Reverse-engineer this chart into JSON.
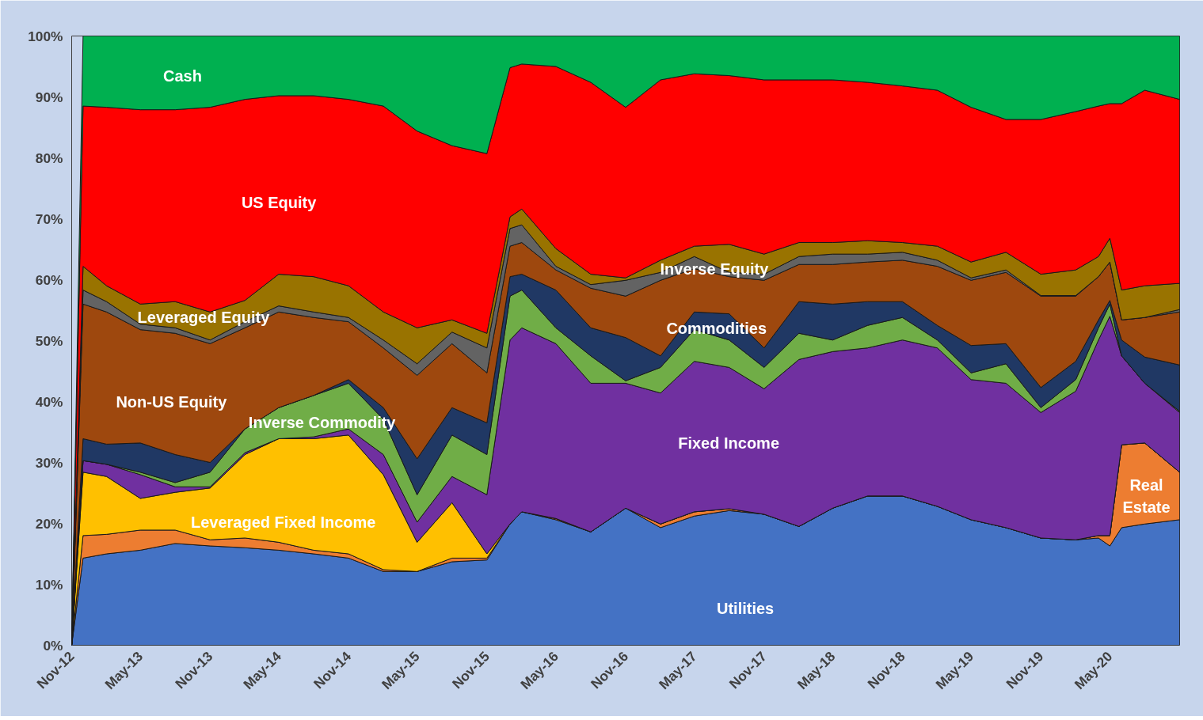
{
  "chart_data": {
    "type": "area",
    "stacked": true,
    "x": [
      "2012-11",
      "2012-12",
      "2013-02",
      "2013-05",
      "2013-08",
      "2013-11",
      "2014-02",
      "2014-05",
      "2014-08",
      "2014-11",
      "2015-02",
      "2015-05",
      "2015-08",
      "2015-11",
      "2016-01",
      "2016-02",
      "2016-05",
      "2016-08",
      "2016-11",
      "2017-02",
      "2017-05",
      "2017-08",
      "2017-11",
      "2018-02",
      "2018-05",
      "2018-08",
      "2018-11",
      "2019-02",
      "2019-05",
      "2019-08",
      "2019-11",
      "2020-02",
      "2020-04",
      "2020-05",
      "2020-06",
      "2020-08",
      "2020-11"
    ],
    "series": [
      {
        "name": "Utilities",
        "color": "#4472c4",
        "values": [
          0,
          14.3,
          15,
          15.6,
          16.7,
          16.3,
          16,
          15.6,
          15,
          14.3,
          12.1,
          12.1,
          13.7,
          14,
          19.9,
          21.9,
          20.6,
          18.6,
          22.5,
          19.3,
          21.2,
          22.1,
          21.5,
          19.5,
          22.5,
          24.5,
          24.5,
          22.8,
          20.6,
          19.3,
          17.6,
          17.3,
          17.6,
          16.3,
          19.3,
          19.9,
          20.6
        ]
      },
      {
        "name": "Real Estate",
        "color": "#ed7d31",
        "values": [
          0,
          3.7,
          3.2,
          3.3,
          2.2,
          1,
          1.6,
          1.3,
          0.6,
          0.7,
          0.3,
          0,
          0.6,
          0.3,
          0,
          0,
          0.2,
          0,
          0,
          0.6,
          0.7,
          0.3,
          0,
          0,
          0,
          0,
          0,
          0,
          0,
          0,
          0,
          0,
          0.4,
          1.7,
          13.6,
          13.3,
          7.8
        ]
      },
      {
        "name": "Leveraged Fixed Income",
        "color": "#ffc000",
        "values": [
          0,
          10.4,
          9.5,
          5.2,
          6.2,
          8.5,
          13.7,
          17,
          18.3,
          19.5,
          15.6,
          4.8,
          9.1,
          0.7,
          0,
          0,
          0,
          0,
          0,
          0,
          0,
          0,
          0,
          0,
          0,
          0,
          0,
          0,
          0,
          0,
          0,
          0,
          0,
          0,
          0,
          0,
          0
        ]
      },
      {
        "name": "Fixed Income",
        "color": "#7030a0",
        "values": [
          0,
          1.9,
          2,
          3.9,
          0.9,
          0.2,
          0.3,
          0,
          0.3,
          1,
          3.3,
          3.3,
          4.3,
          9.7,
          30.2,
          30.2,
          28.7,
          24.4,
          20.5,
          21.5,
          24.7,
          23.2,
          20.6,
          27.4,
          25.7,
          24.3,
          25.6,
          26,
          23,
          23.7,
          20.6,
          24.4,
          32.1,
          36,
          14.6,
          9.8,
          9.8
        ]
      },
      {
        "name": "Inverse Commodity",
        "color": "#70ad47",
        "values": [
          0,
          0,
          0,
          0.4,
          0.7,
          2.4,
          3.9,
          5.1,
          6.8,
          7.5,
          5.8,
          4.5,
          6.8,
          6.6,
          7.2,
          6.2,
          2.6,
          4.5,
          0.4,
          4.2,
          5.2,
          4.5,
          3.5,
          4.3,
          1.9,
          3.7,
          3.7,
          1.3,
          1.1,
          3.2,
          0.8,
          1.9,
          2,
          2,
          0,
          0,
          0.2
        ]
      },
      {
        "name": "Commodities",
        "color": "#203864",
        "values": [
          0,
          3.6,
          3.3,
          4.8,
          4.6,
          1.6,
          0,
          0,
          0,
          0.6,
          1.9,
          5.9,
          4.5,
          5.2,
          3.2,
          2.6,
          6.2,
          4.6,
          7.1,
          1.9,
          2.9,
          4.3,
          3.2,
          5.2,
          5.9,
          3.9,
          2.6,
          2.4,
          4.5,
          3.3,
          3.3,
          3,
          1.3,
          0.6,
          2.6,
          4.3,
          7.6
        ]
      },
      {
        "name": "Non-US Equity",
        "color": "#9e480e",
        "values": [
          0,
          22.1,
          21.7,
          18.6,
          19.9,
          19.5,
          16.6,
          15.7,
          12.8,
          9.5,
          9.8,
          13.7,
          10.5,
          8.2,
          5,
          5.2,
          3.3,
          6.5,
          6.8,
          12.4,
          7.1,
          6.1,
          11.1,
          6.1,
          6.5,
          6.5,
          6.8,
          9.7,
          10.7,
          11.7,
          15,
          10.7,
          7.1,
          6.3,
          3.3,
          6.5,
          8.7
        ]
      },
      {
        "name": "Inverse Equity",
        "color": "#636363",
        "values": [
          0,
          2.3,
          1.7,
          0.9,
          0.9,
          0.6,
          1,
          1,
          0.9,
          0.7,
          1.3,
          1.9,
          1.9,
          4.1,
          2.9,
          2.9,
          0.6,
          0.6,
          2.6,
          1.3,
          2,
          0.7,
          1,
          1.3,
          1.7,
          1.3,
          1.3,
          1,
          0.4,
          0.4,
          0.1,
          0.1,
          0,
          0,
          0,
          0,
          0.4
        ]
      },
      {
        "name": "Leveraged Equity",
        "color": "#997300",
        "values": [
          0,
          3.9,
          2.6,
          3.3,
          4.3,
          4.6,
          3.5,
          5.2,
          5.8,
          5.2,
          4.6,
          5.9,
          2,
          2.4,
          1.9,
          2.6,
          2.9,
          1.7,
          0.4,
          2,
          1.7,
          4.6,
          3.3,
          2.3,
          1.9,
          2.2,
          1.6,
          2.3,
          2.6,
          2.9,
          3.5,
          4.2,
          3.3,
          3.9,
          4.9,
          5.2,
          4.3
        ]
      },
      {
        "name": "US Equity",
        "color": "#ff0000",
        "values": [
          0,
          26.3,
          29.3,
          31.9,
          31.5,
          33.6,
          33,
          29.3,
          29.7,
          30.6,
          33.8,
          32.3,
          28.6,
          29.5,
          24.5,
          23.8,
          29.9,
          31.5,
          28,
          29.6,
          28.3,
          27.7,
          28.6,
          26.7,
          26.7,
          26,
          25.7,
          25.6,
          25.4,
          21.8,
          25.4,
          26,
          24.7,
          22.1,
          30.6,
          32.1,
          30.2
        ]
      },
      {
        "name": "Cash",
        "color": "#00b050",
        "values": [
          0,
          11.5,
          11.7,
          12.1,
          12.1,
          11.7,
          10.4,
          9.8,
          9.8,
          10.4,
          11.5,
          15.6,
          18,
          19.3,
          5.2,
          4.6,
          5,
          7.6,
          11.7,
          7.2,
          6.2,
          6.5,
          7.2,
          7.2,
          7.2,
          7.6,
          8.2,
          8.9,
          11.7,
          13.7,
          13.7,
          12.4,
          11.5,
          11.1,
          11.1,
          8.9,
          10.4
        ]
      }
    ],
    "xlim": [
      "2012-11",
      "2020-11"
    ],
    "xticks": [
      {
        "value": "2012-11",
        "label": "Nov-12"
      },
      {
        "value": "2013-05",
        "label": "May-13"
      },
      {
        "value": "2013-11",
        "label": "Nov-13"
      },
      {
        "value": "2014-05",
        "label": "May-14"
      },
      {
        "value": "2014-11",
        "label": "Nov-14"
      },
      {
        "value": "2015-05",
        "label": "May-15"
      },
      {
        "value": "2015-11",
        "label": "Nov-15"
      },
      {
        "value": "2016-05",
        "label": "May-16"
      },
      {
        "value": "2016-11",
        "label": "Nov-16"
      },
      {
        "value": "2017-05",
        "label": "May-17"
      },
      {
        "value": "2017-11",
        "label": "Nov-17"
      },
      {
        "value": "2018-05",
        "label": "May-18"
      },
      {
        "value": "2018-11",
        "label": "Nov-18"
      },
      {
        "value": "2019-05",
        "label": "May-19"
      },
      {
        "value": "2019-11",
        "label": "Nov-19"
      },
      {
        "value": "2020-05",
        "label": "May-20"
      }
    ],
    "ylim": [
      0,
      100
    ],
    "yticks": [
      {
        "value": 0,
        "label": "0%"
      },
      {
        "value": 10,
        "label": "10%"
      },
      {
        "value": 20,
        "label": "20%"
      },
      {
        "value": 30,
        "label": "30%"
      },
      {
        "value": 40,
        "label": "40%"
      },
      {
        "value": 50,
        "label": "50%"
      },
      {
        "value": 60,
        "label": "60%"
      },
      {
        "value": 70,
        "label": "70%"
      },
      {
        "value": 80,
        "label": "80%"
      },
      {
        "value": 90,
        "label": "90%"
      },
      {
        "value": 100,
        "label": "100%"
      }
    ]
  }
}
